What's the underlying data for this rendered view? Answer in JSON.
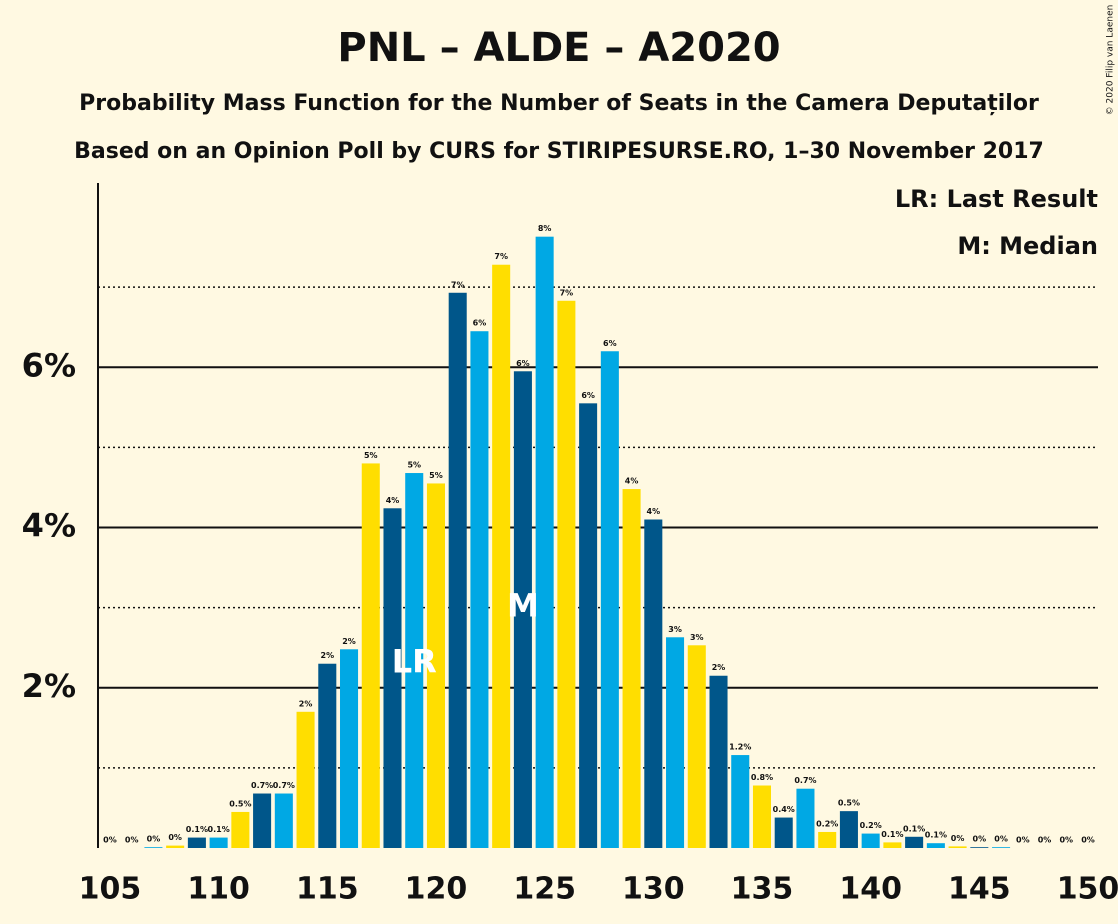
{
  "chart_data": {
    "type": "bar",
    "title": "PNL – ALDE – A2020",
    "subtitle": "Probability Mass Function for the Number of Seats in the Camera Deputaților",
    "subtitle2": "Based on an Opinion Poll by CURS for STIRIPESURSE.RO, 1–30 November 2017",
    "copyright": "© 2020 Filip van Laenen",
    "legend": [
      "LR: Last Result",
      "M: Median"
    ],
    "annotations": [
      {
        "text": "LR",
        "x": 119,
        "y": 2.3
      },
      {
        "text": "M",
        "x": 124,
        "y": 3
      }
    ],
    "x": [
      105,
      106,
      107,
      108,
      109,
      110,
      111,
      112,
      113,
      114,
      115,
      116,
      117,
      118,
      119,
      120,
      121,
      122,
      123,
      124,
      125,
      126,
      127,
      128,
      129,
      130,
      131,
      132,
      133,
      134,
      135,
      136,
      137,
      138,
      139,
      140,
      141,
      142,
      143,
      144,
      145,
      146,
      147,
      148,
      149,
      150
    ],
    "values": [
      0,
      0,
      0.01,
      0.03,
      0.13,
      0.13,
      0.45,
      0.68,
      0.68,
      1.7,
      2.3,
      2.48,
      4.8,
      4.24,
      4.68,
      4.55,
      6.93,
      6.45,
      7.28,
      5.95,
      7.63,
      6.83,
      5.55,
      6.2,
      4.48,
      4.1,
      2.63,
      2.53,
      2.15,
      1.16,
      0.78,
      0.38,
      0.74,
      0.2,
      0.46,
      0.18,
      0.07,
      0.14,
      0.06,
      0.02,
      0.01,
      0.01,
      0,
      0,
      0,
      0
    ],
    "value_labels": [
      "0%",
      "0%",
      "0%",
      "0%",
      "0.1%",
      "0.1%",
      "0.5%",
      "0.7%",
      "0.7%",
      "2%",
      "2%",
      "2%",
      "5%",
      "4%",
      "5%",
      "5%",
      "7%",
      "6%",
      "7%",
      "6%",
      "8%",
      "7%",
      "6%",
      "6%",
      "4%",
      "4%",
      "3%",
      "3%",
      "2%",
      "1.2%",
      "0.8%",
      "0.4%",
      "0.7%",
      "0.2%",
      "0.5%",
      "0.2%",
      "0.1%",
      "0.1%",
      "0.1%",
      "0%",
      "0%",
      "0%",
      "0%",
      "0%",
      "0%",
      "0%"
    ],
    "color_cycle": [
      "#ffde00",
      "#00568a",
      "#00a8e4"
    ],
    "xlim": [
      104.45,
      150.46
    ],
    "xticks": [
      105,
      110,
      115,
      120,
      125,
      130,
      135,
      140,
      145,
      150
    ],
    "ylim": [
      0,
      8.3
    ],
    "yticks": [
      {
        "value": 2,
        "label": "2%"
      },
      {
        "value": 4,
        "label": "4%"
      },
      {
        "value": 6,
        "label": "6%"
      }
    ],
    "minor_yticks": [
      1,
      3,
      5,
      7
    ],
    "grid": true
  }
}
